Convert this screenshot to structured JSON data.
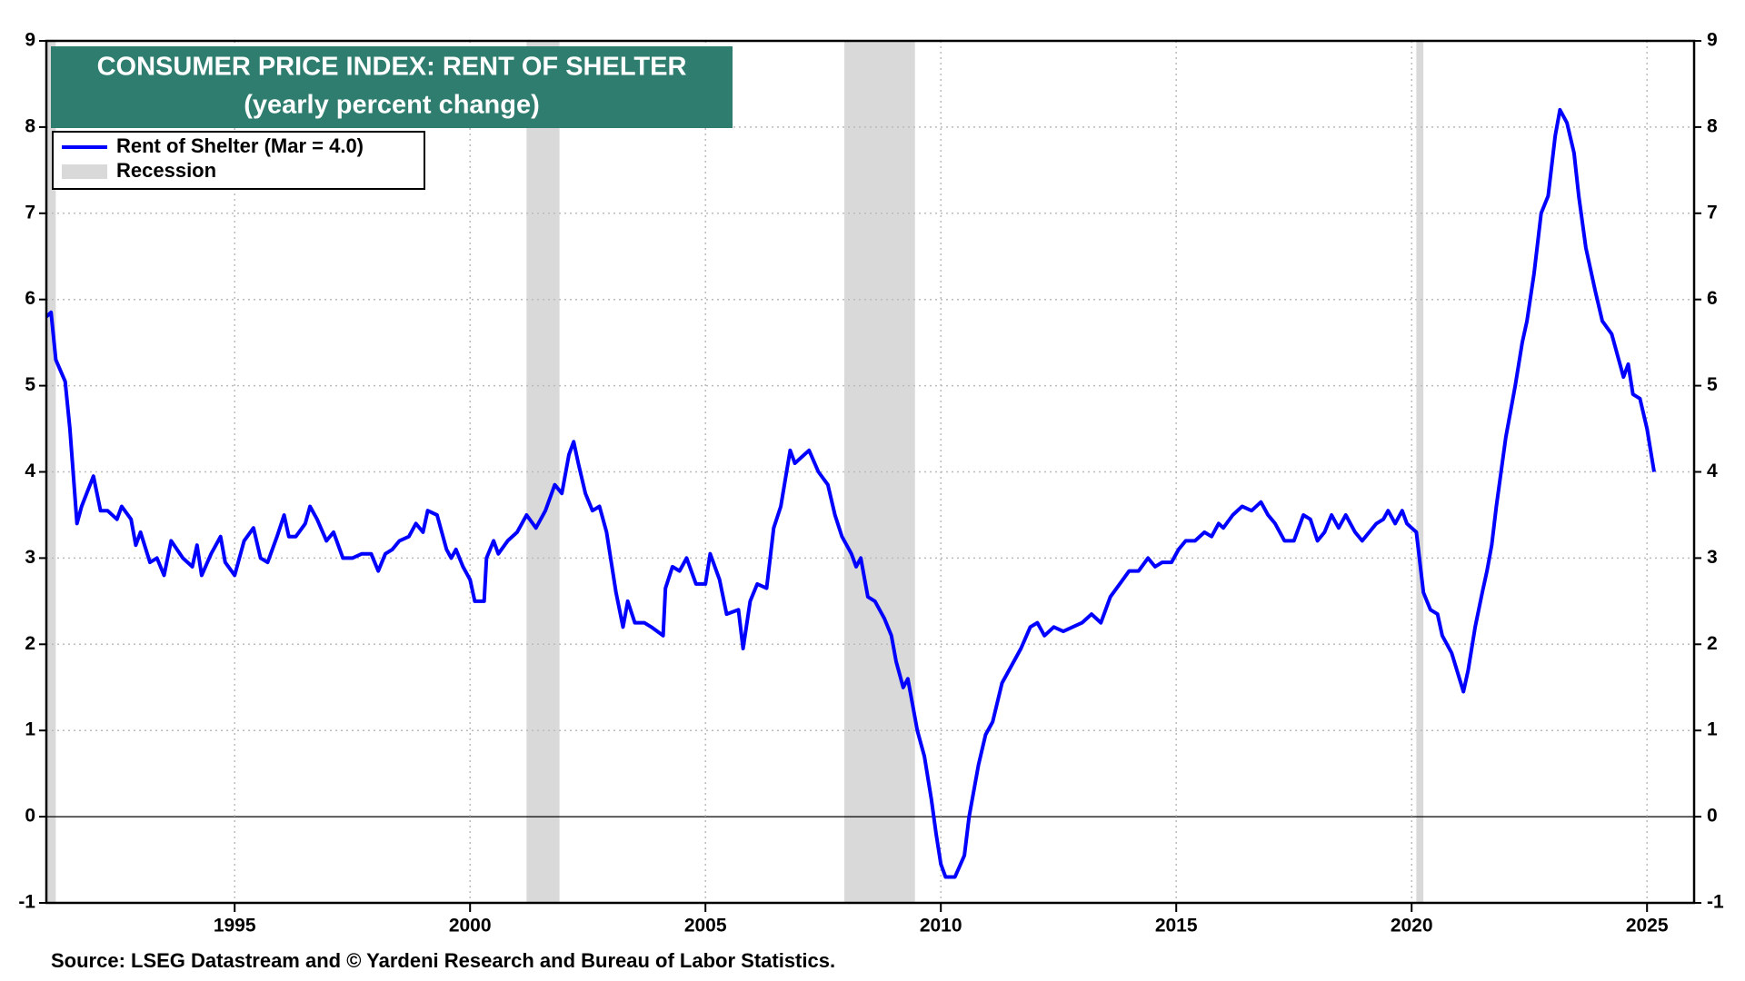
{
  "chart_data": {
    "type": "line",
    "title": "CONSUMER PRICE INDEX: RENT OF SHELTER",
    "subtitle": "(yearly percent change)",
    "source": "Source: LSEG Datastream and © Yardeni Research and Bureau of Labor Statistics.",
    "xlim": [
      1991,
      2026
    ],
    "xticks": [
      1995,
      2000,
      2005,
      2010,
      2015,
      2020,
      2025
    ],
    "ylim": [
      -1,
      9
    ],
    "yticks": [
      -1,
      0,
      1,
      2,
      3,
      4,
      5,
      6,
      7,
      8,
      9
    ],
    "grid": true,
    "x": [
      1991.0,
      1991.1,
      1991.2,
      1991.4,
      1991.5,
      1991.65,
      1991.75,
      1992.0,
      1992.15,
      1992.3,
      1992.5,
      1992.6,
      1992.8,
      1992.9,
      1993.0,
      1993.2,
      1993.35,
      1993.5,
      1993.65,
      1993.9,
      1994.1,
      1994.2,
      1994.3,
      1994.5,
      1994.7,
      1994.8,
      1995.0,
      1995.2,
      1995.4,
      1995.55,
      1995.7,
      1995.9,
      1996.05,
      1996.15,
      1996.3,
      1996.5,
      1996.6,
      1996.75,
      1996.95,
      1997.1,
      1997.3,
      1997.5,
      1997.7,
      1997.9,
      1998.05,
      1998.2,
      1998.35,
      1998.5,
      1998.7,
      1998.85,
      1999.0,
      1999.1,
      1999.3,
      1999.5,
      1999.6,
      1999.7,
      1999.85,
      2000.0,
      2000.1,
      2000.3,
      2000.35,
      2000.5,
      2000.6,
      2000.8,
      2001.0,
      2001.2,
      2001.4,
      2001.6,
      2001.8,
      2001.95,
      2002.1,
      2002.2,
      2002.3,
      2002.45,
      2002.6,
      2002.75,
      2002.9,
      2003.1,
      2003.25,
      2003.35,
      2003.5,
      2003.7,
      2003.85,
      2004.1,
      2004.15,
      2004.3,
      2004.45,
      2004.6,
      2004.8,
      2005.0,
      2005.1,
      2005.3,
      2005.45,
      2005.7,
      2005.8,
      2005.95,
      2006.1,
      2006.3,
      2006.45,
      2006.6,
      2006.8,
      2006.9,
      2007.1,
      2007.2,
      2007.4,
      2007.6,
      2007.75,
      2007.9,
      2008.1,
      2008.2,
      2008.3,
      2008.45,
      2008.6,
      2008.8,
      2008.95,
      2009.05,
      2009.2,
      2009.3,
      2009.5,
      2009.65,
      2009.8,
      2009.9,
      2010.0,
      2010.1,
      2010.3,
      2010.5,
      2010.6,
      2010.8,
      2010.95,
      2011.1,
      2011.3,
      2011.5,
      2011.7,
      2011.9,
      2012.05,
      2012.2,
      2012.4,
      2012.6,
      2012.8,
      2013.0,
      2013.2,
      2013.4,
      2013.6,
      2013.8,
      2014.0,
      2014.2,
      2014.4,
      2014.55,
      2014.7,
      2014.9,
      2015.05,
      2015.2,
      2015.4,
      2015.6,
      2015.75,
      2015.9,
      2016.0,
      2016.2,
      2016.4,
      2016.6,
      2016.8,
      2016.95,
      2017.1,
      2017.3,
      2017.5,
      2017.6,
      2017.7,
      2017.85,
      2018.0,
      2018.15,
      2018.3,
      2018.45,
      2018.6,
      2018.8,
      2018.95,
      2019.1,
      2019.25,
      2019.4,
      2019.5,
      2019.65,
      2019.8,
      2019.9,
      2020.0,
      2020.1,
      2020.25,
      2020.4,
      2020.55,
      2020.65,
      2020.85,
      2021.1,
      2021.2,
      2021.35,
      2021.5,
      2021.6,
      2021.7,
      2021.8,
      2022.0,
      2022.2,
      2022.35,
      2022.45,
      2022.6,
      2022.75,
      2022.9,
      2023.05,
      2023.15,
      2023.3,
      2023.45,
      2023.55,
      2023.7,
      2023.9,
      2024.05,
      2024.25,
      2024.4,
      2024.5,
      2024.6,
      2024.7,
      2024.85,
      2025.0,
      2025.15
    ],
    "series": [
      {
        "name": "Rent of Shelter (Mar = 4.0)",
        "color": "#0000ff",
        "values": [
          5.8,
          5.85,
          5.3,
          5.05,
          4.5,
          3.4,
          3.6,
          3.95,
          3.55,
          3.55,
          3.45,
          3.6,
          3.45,
          3.15,
          3.3,
          2.95,
          3.0,
          2.8,
          3.2,
          3.0,
          2.9,
          3.15,
          2.8,
          3.05,
          3.25,
          2.95,
          2.8,
          3.2,
          3.35,
          3.0,
          2.95,
          3.25,
          3.5,
          3.25,
          3.25,
          3.4,
          3.6,
          3.45,
          3.2,
          3.3,
          3.0,
          3.0,
          3.05,
          3.05,
          2.85,
          3.05,
          3.1,
          3.2,
          3.25,
          3.4,
          3.3,
          3.55,
          3.5,
          3.1,
          3.0,
          3.1,
          2.9,
          2.75,
          2.5,
          2.5,
          3.0,
          3.2,
          3.05,
          3.2,
          3.3,
          3.5,
          3.35,
          3.55,
          3.85,
          3.75,
          4.2,
          4.35,
          4.1,
          3.75,
          3.55,
          3.6,
          3.3,
          2.6,
          2.2,
          2.5,
          2.25,
          2.25,
          2.2,
          2.1,
          2.65,
          2.9,
          2.85,
          3.0,
          2.7,
          2.7,
          3.05,
          2.75,
          2.35,
          2.4,
          1.95,
          2.5,
          2.7,
          2.65,
          3.35,
          3.6,
          4.25,
          4.1,
          4.2,
          4.25,
          4.0,
          3.85,
          3.5,
          3.25,
          3.05,
          2.9,
          3.0,
          2.55,
          2.5,
          2.3,
          2.1,
          1.8,
          1.5,
          1.6,
          1.0,
          0.7,
          0.2,
          -0.2,
          -0.55,
          -0.7,
          -0.7,
          -0.45,
          0.0,
          0.6,
          0.95,
          1.1,
          1.55,
          1.75,
          1.95,
          2.2,
          2.25,
          2.1,
          2.2,
          2.15,
          2.2,
          2.25,
          2.35,
          2.25,
          2.55,
          2.7,
          2.85,
          2.85,
          3.0,
          2.9,
          2.95,
          2.95,
          3.1,
          3.2,
          3.2,
          3.3,
          3.25,
          3.4,
          3.35,
          3.5,
          3.6,
          3.55,
          3.65,
          3.5,
          3.4,
          3.2,
          3.2,
          3.35,
          3.5,
          3.45,
          3.2,
          3.3,
          3.5,
          3.35,
          3.5,
          3.3,
          3.2,
          3.3,
          3.4,
          3.45,
          3.55,
          3.4,
          3.55,
          3.4,
          3.35,
          3.3,
          2.6,
          2.4,
          2.35,
          2.1,
          1.9,
          1.45,
          1.7,
          2.2,
          2.6,
          2.85,
          3.15,
          3.6,
          4.4,
          5.0,
          5.5,
          5.75,
          6.3,
          7.0,
          7.2,
          7.9,
          8.2,
          8.05,
          7.7,
          7.2,
          6.6,
          6.1,
          5.75,
          5.6,
          5.3,
          5.1,
          5.25,
          4.9,
          4.85,
          4.5,
          4.0
        ]
      }
    ],
    "recession": {
      "label": "Recession",
      "color": "#d9d9d9",
      "periods": [
        [
          1991.0,
          1991.2
        ],
        [
          2001.2,
          2001.9
        ],
        [
          2007.95,
          2009.45
        ],
        [
          2020.1,
          2020.25
        ]
      ]
    }
  }
}
